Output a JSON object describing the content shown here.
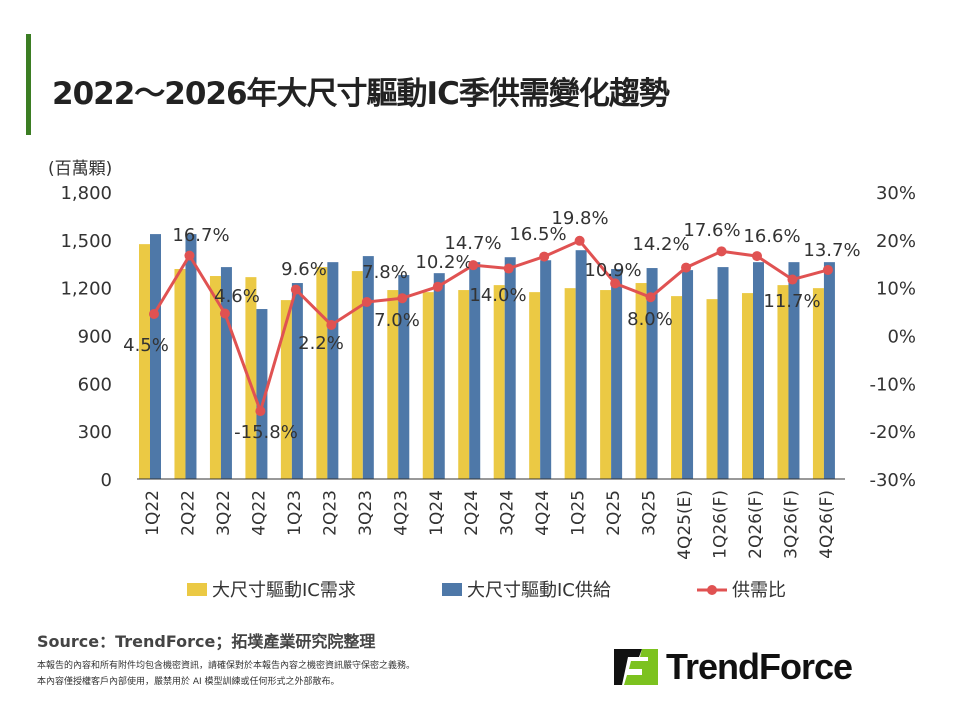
{
  "title": "2022～2026年大尺寸驅動IC季供需變化趨勢",
  "chart_data": {
    "type": "bar+line",
    "title": "2022～2026年大尺寸驅動IC季供需變化趨勢",
    "ylabel": "(百萬顆)",
    "ylim": [
      0,
      1800
    ],
    "yticks": [
      "0",
      "300",
      "600",
      "900",
      "1,200",
      "1,500",
      "1,800"
    ],
    "y2lim": [
      -30,
      30
    ],
    "y2ticks": [
      "-30%",
      "-20%",
      "-10%",
      "0%",
      "10%",
      "20%",
      "30%"
    ],
    "categories": [
      "1Q22",
      "2Q22",
      "3Q22",
      "4Q22",
      "1Q23",
      "2Q23",
      "3Q23",
      "4Q23",
      "1Q24",
      "2Q24",
      "3Q24",
      "4Q24",
      "1Q25",
      "2Q25",
      "3Q25",
      "4Q25(E)",
      "1Q26(F)",
      "2Q26(F)",
      "3Q26(F)",
      "4Q26(F)"
    ],
    "series": [
      {
        "name": "大尺寸驅動IC需求",
        "type": "bar",
        "color": "#ebc944",
        "values": [
          1473,
          1317,
          1273,
          1266,
          1122,
          1329,
          1304,
          1185,
          1172,
          1185,
          1216,
          1172,
          1197,
          1185,
          1229,
          1147,
          1128,
          1166,
          1216,
          1197
        ]
      },
      {
        "name": "大尺寸驅動IC供給",
        "type": "bar",
        "color": "#4e78a8",
        "values": [
          1536,
          1536,
          1329,
          1066,
          1229,
          1360,
          1398,
          1279,
          1291,
          1360,
          1391,
          1372,
          1435,
          1317,
          1323,
          1310,
          1329,
          1360,
          1360,
          1360
        ]
      },
      {
        "name": "供需比",
        "type": "line",
        "axis": "right",
        "color": "#e05252",
        "values": [
          4.5,
          16.7,
          4.6,
          -15.8,
          9.6,
          2.2,
          7.0,
          7.8,
          10.2,
          14.7,
          14.0,
          16.5,
          19.8,
          10.9,
          8.0,
          14.2,
          17.6,
          16.6,
          11.7,
          13.7
        ],
        "labels": [
          "4.5%",
          "16.7%",
          "4.6%",
          "-15.8%",
          "9.6%",
          "2.2%",
          "7.0%",
          "7.8%",
          "10.2%",
          "14.7%",
          "14.0%",
          "16.5%",
          "19.8%",
          "10.9%",
          "8.0%",
          "14.2%",
          "17.6%",
          "16.6%",
          "11.7%",
          "13.7%"
        ]
      }
    ],
    "legend": "bottom",
    "grid": false
  },
  "footer": {
    "source": "Source：TrendForce；拓墣產業研究院整理",
    "disclaimer1": "本報告的內容和所有附件均包含機密資訊，請確保對於本報告內容之機密資訊嚴守保密之義務。",
    "disclaimer2": "本內容僅授權客戶內部使用，嚴禁用於 AI 模型訓練或任何形式之外部散布。"
  },
  "logo": {
    "text": "TrendForce",
    "color_green": "#7cc21f"
  }
}
